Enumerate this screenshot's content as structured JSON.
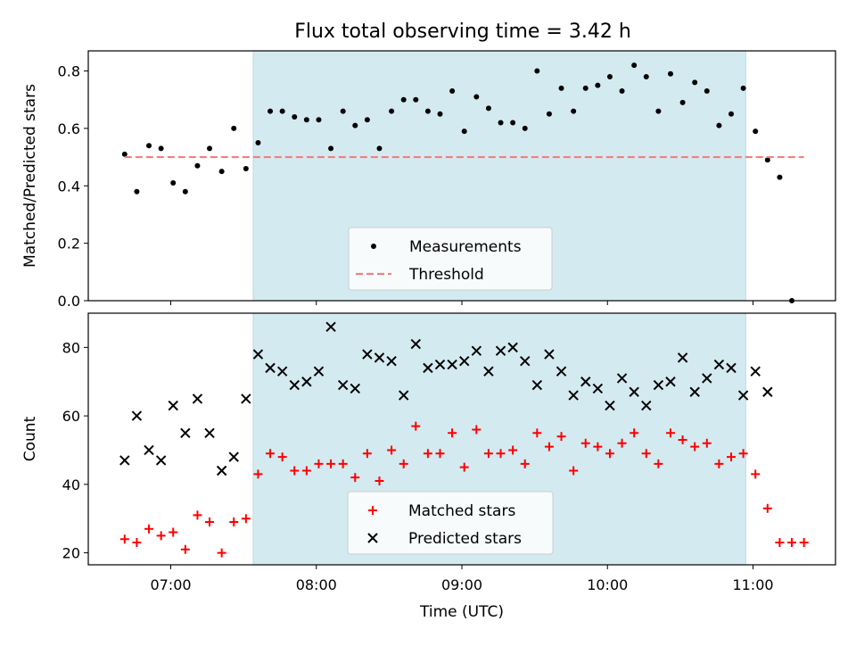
{
  "chart_data": [
    {
      "type": "scatter",
      "title": "Flux total observing time = 3.42 h",
      "xlabel": "",
      "ylabel": "Matched/Predicted stars",
      "xlim": [
        "06:26",
        "11:34"
      ],
      "ylim": [
        0.0,
        0.87
      ],
      "yticks": [
        0.0,
        0.2,
        0.4,
        0.6,
        0.8
      ],
      "ytick_labels": [
        "0.0",
        "0.2",
        "0.4",
        "0.6",
        "0.8"
      ],
      "xticks": [
        "07:00",
        "08:00",
        "09:00",
        "10:00",
        "11:00"
      ],
      "shaded_region": {
        "start": "07:34",
        "end": "10:57",
        "color": "#d4eaf1"
      },
      "legend": {
        "position": "bottom-center"
      },
      "series": [
        {
          "name": "Measurements",
          "marker": "dot",
          "color": "#000000",
          "x": [
            "06:41",
            "06:46",
            "06:51",
            "06:56",
            "07:01",
            "07:06",
            "07:11",
            "07:16",
            "07:21",
            "07:26",
            "07:31",
            "07:36",
            "07:41",
            "07:46",
            "07:51",
            "07:56",
            "08:01",
            "08:06",
            "08:11",
            "08:16",
            "08:21",
            "08:26",
            "08:31",
            "08:36",
            "08:41",
            "08:46",
            "08:51",
            "08:56",
            "09:01",
            "09:06",
            "09:11",
            "09:16",
            "09:21",
            "09:26",
            "09:31",
            "09:36",
            "09:41",
            "09:46",
            "09:51",
            "09:56",
            "10:01",
            "10:06",
            "10:11",
            "10:16",
            "10:21",
            "10:26",
            "10:31",
            "10:36",
            "10:41",
            "10:46",
            "10:51",
            "10:56",
            "11:01",
            "11:06",
            "11:11",
            "11:16"
          ],
          "y": [
            0.51,
            0.38,
            0.54,
            0.53,
            0.41,
            0.38,
            0.47,
            0.53,
            0.45,
            0.6,
            0.46,
            0.55,
            0.66,
            0.66,
            0.64,
            0.63,
            0.63,
            0.53,
            0.66,
            0.61,
            0.63,
            0.53,
            0.66,
            0.7,
            0.7,
            0.66,
            0.65,
            0.73,
            0.59,
            0.71,
            0.67,
            0.62,
            0.62,
            0.6,
            0.8,
            0.65,
            0.74,
            0.66,
            0.74,
            0.75,
            0.78,
            0.73,
            0.82,
            0.78,
            0.66,
            0.79,
            0.69,
            0.76,
            0.73,
            0.61,
            0.65,
            0.74,
            0.59,
            0.49,
            0.43,
            0.0
          ]
        },
        {
          "name": "Threshold",
          "marker": "dashed-line",
          "color": "#f08080",
          "x": [
            "06:41",
            "11:21"
          ],
          "y": [
            0.5,
            0.5
          ]
        }
      ]
    },
    {
      "type": "scatter",
      "title": "",
      "xlabel": "Time (UTC)",
      "ylabel": "Count",
      "xlim": [
        "06:26",
        "11:34"
      ],
      "ylim": [
        16.5,
        90.0
      ],
      "yticks": [
        20,
        40,
        60,
        80
      ],
      "ytick_labels": [
        "20",
        "40",
        "60",
        "80"
      ],
      "xticks": [
        "07:00",
        "08:00",
        "09:00",
        "10:00",
        "11:00"
      ],
      "xtick_labels": [
        "07:00",
        "08:00",
        "09:00",
        "10:00",
        "11:00"
      ],
      "shaded_region": {
        "start": "07:34",
        "end": "10:57",
        "color": "#d4eaf1"
      },
      "legend": {
        "position": "bottom-center"
      },
      "series": [
        {
          "name": "Matched stars",
          "marker": "plus",
          "color": "#ff0000",
          "x": [
            "06:41",
            "06:46",
            "06:51",
            "06:56",
            "07:01",
            "07:06",
            "07:11",
            "07:16",
            "07:21",
            "07:26",
            "07:31",
            "07:36",
            "07:41",
            "07:46",
            "07:51",
            "07:56",
            "08:01",
            "08:06",
            "08:11",
            "08:16",
            "08:21",
            "08:26",
            "08:31",
            "08:36",
            "08:41",
            "08:46",
            "08:51",
            "08:56",
            "09:01",
            "09:06",
            "09:11",
            "09:16",
            "09:21",
            "09:26",
            "09:31",
            "09:36",
            "09:41",
            "09:46",
            "09:51",
            "09:56",
            "10:01",
            "10:06",
            "10:11",
            "10:16",
            "10:21",
            "10:26",
            "10:31",
            "10:36",
            "10:41",
            "10:46",
            "10:51",
            "10:56",
            "11:01",
            "11:06",
            "11:11",
            "11:16",
            "11:21"
          ],
          "y": [
            24,
            23,
            27,
            25,
            26,
            21,
            31,
            29,
            20,
            29,
            30,
            43,
            49,
            48,
            44,
            44,
            46,
            46,
            46,
            42,
            49,
            41,
            50,
            46,
            57,
            49,
            49,
            55,
            45,
            56,
            49,
            49,
            50,
            46,
            55,
            51,
            54,
            44,
            52,
            51,
            49,
            52,
            55,
            49,
            46,
            55,
            53,
            51,
            52,
            46,
            48,
            49,
            43,
            33,
            23,
            23,
            23
          ]
        },
        {
          "name": "Predicted stars",
          "marker": "x",
          "color": "#000000",
          "x": [
            "06:41",
            "06:46",
            "06:51",
            "06:56",
            "07:01",
            "07:06",
            "07:11",
            "07:16",
            "07:21",
            "07:26",
            "07:31",
            "07:36",
            "07:41",
            "07:46",
            "07:51",
            "07:56",
            "08:01",
            "08:06",
            "08:11",
            "08:16",
            "08:21",
            "08:26",
            "08:31",
            "08:36",
            "08:41",
            "08:46",
            "08:51",
            "08:56",
            "09:01",
            "09:06",
            "09:11",
            "09:16",
            "09:21",
            "09:26",
            "09:31",
            "09:36",
            "09:41",
            "09:46",
            "09:51",
            "09:56",
            "10:01",
            "10:06",
            "10:11",
            "10:16",
            "10:21",
            "10:26",
            "10:31",
            "10:36",
            "10:41",
            "10:46",
            "10:51",
            "10:56",
            "11:01",
            "11:06"
          ],
          "y": [
            47,
            60,
            50,
            47,
            63,
            55,
            65,
            55,
            44,
            48,
            65,
            78,
            74,
            73,
            69,
            70,
            73,
            86,
            69,
            68,
            78,
            77,
            76,
            66,
            81,
            74,
            75,
            75,
            76,
            79,
            73,
            79,
            80,
            76,
            69,
            78,
            73,
            66,
            70,
            68,
            63,
            71,
            67,
            63,
            69,
            70,
            77,
            67,
            71,
            75,
            74,
            66,
            73,
            67
          ]
        }
      ]
    }
  ]
}
